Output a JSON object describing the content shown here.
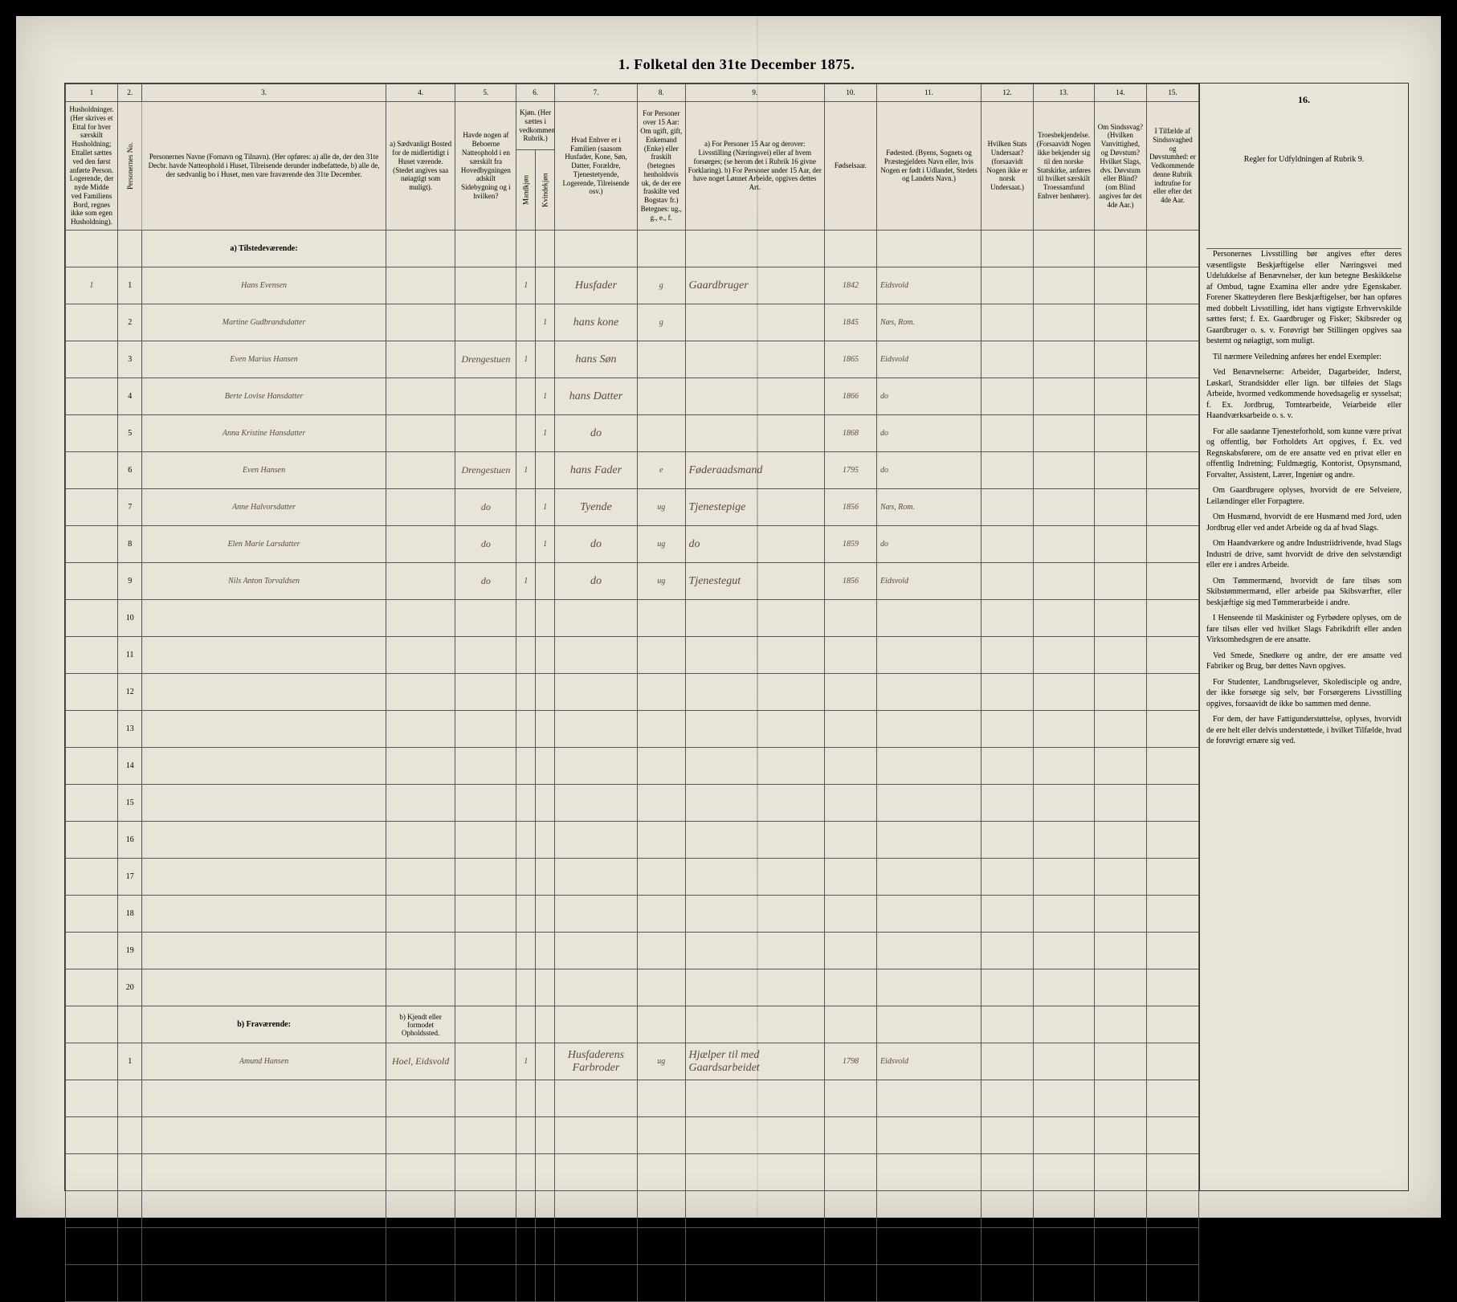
{
  "title": "1. Folketal den 31te December 1875.",
  "column_numbers": [
    "1",
    "2.",
    "3.",
    "4.",
    "5.",
    "6.",
    "7.",
    "8.",
    "9.",
    "10.",
    "11.",
    "12.",
    "13.",
    "14.",
    "15.",
    "16."
  ],
  "headers": {
    "c1": "Husholdninger. (Her skrives et Ettal for hver særskilt Husholdning; Ettallet sættes ved den først anførte Person. Logerende, der nyde Midde ved Familiens Bord, regnes ikke som egen Husholdning).",
    "c2": "Personernes No.",
    "c3": "Personernes Navne (Fornavn og Tilnavn). (Her opføres: a) alle de, der den 31te Decbr. havde Natteophold i Huset, Tilreisende derunder indbefattede, b) alle de, der sædvanlig bo i Huset, men vare fraværende den 31te December.",
    "c4": "a) Sædvanligt Bosted for de midlertidigt i Huset værende. (Stedet angives saa nøiagtigt som muligt).",
    "c5": "Havde nogen af Beboerne Natteophold i en særskilt fra Hovedbygningen adskilt Sidebygning og i hvilken?",
    "c6": "Kjøn. (Her sættes i vedkommende Rubrik.)",
    "c6a": "Mandkjøn",
    "c6b": "Kvindekjøn",
    "c7": "Hvad Enhver er i Familien (saasom Husfader, Kone, Søn, Datter, Forældre, Tjenestetyende, Logerende, Tilreisende osv.)",
    "c8": "For Personer over 15 Aar: Om ugift, gift, Enkemand (Enke) eller fraskilt (betegnes henholdsvis uk, de der ere fraskilte ved Bogstav fr.) Betegnes: ug., g., e., f.",
    "c9": "a) For Personer 15 Aar og derover: Livsstilling (Næringsvei) eller af hvem forsørges; (se herom det i Rubrik 16 givne Forklaring). b) For Personer under 15 Aar, der have noget Lønnet Arbeide, opgives dettes Art.",
    "c10": "Fødselsaar.",
    "c11": "Fødested. (Byens, Sognets og Præstegjeldets Navn eller, hvis Nogen er født i Udlandet, Stedets og Landets Navn.)",
    "c12": "Hvilken Stats Undersaat? (forsaavidt Nogen ikke er norsk Undersaat.)",
    "c13": "Troesbekjendelse. (Forsaavidt Nogen ikke bekjender sig til den norske Statskirke, anføres til hvilket særskilt Troessamfund Enhver henhører).",
    "c14": "Om Sindssvag? (Hvilken Vanvittighed, og Døvstum? Hvilket Slags, dvs. Døvstum eller Blind? (om Blind angives før det 4de Aar.)",
    "c15": "I Tilfælde af Sindssvaghed og Døvstumhed: er Vedkommende denne Rubrik indtrufne for eller efter det 4de Aar.",
    "c16": "Regler for Udfyldningen af Rubrik 9."
  },
  "section_a": "a) Tilstedeværende:",
  "section_b": "b) Fraværende:",
  "section_b_col4": "b) Kjendt eller formodet Opholdssted.",
  "rows_a": [
    {
      "hh": "1",
      "no": "1",
      "name": "Hans Evensen",
      "c4": "",
      "c5": "",
      "m": "1",
      "f": "",
      "rel": "Husfader",
      "civ": "g",
      "occ": "Gaardbruger",
      "year": "1842",
      "place": "Eidsvold"
    },
    {
      "hh": "",
      "no": "2",
      "name": "Martine Gudbrandsdatter",
      "c4": "",
      "c5": "",
      "m": "",
      "f": "1",
      "rel": "hans kone",
      "civ": "g",
      "occ": "",
      "year": "1845",
      "place": "Næs, Rom."
    },
    {
      "hh": "",
      "no": "3",
      "name": "Even Marius Hansen",
      "c4": "",
      "c5": "Drengestuen",
      "m": "1",
      "f": "",
      "rel": "hans Søn",
      "civ": "",
      "occ": "",
      "year": "1865",
      "place": "Eidsvold"
    },
    {
      "hh": "",
      "no": "4",
      "name": "Berte Lovise Hansdatter",
      "c4": "",
      "c5": "",
      "m": "",
      "f": "1",
      "rel": "hans Datter",
      "civ": "",
      "occ": "",
      "year": "1866",
      "place": "do",
      "c12": "",
      "c13": "",
      "c14": "",
      "c15": ""
    },
    {
      "hh": "",
      "no": "5",
      "name": "Anna Kristine Hansdatter",
      "c4": "",
      "c5": "",
      "m": "",
      "f": "1",
      "rel": "do",
      "civ": "",
      "occ": "",
      "year": "1868",
      "place": "do"
    },
    {
      "hh": "",
      "no": "6",
      "name": "Even Hansen",
      "c4": "",
      "c5": "Drengestuen",
      "m": "1",
      "f": "",
      "rel": "hans Fader",
      "civ": "e",
      "occ": "Føderaadsmand",
      "year": "1795",
      "place": "do"
    },
    {
      "hh": "",
      "no": "7",
      "name": "Anne Halvorsdatter",
      "c4": "",
      "c5": "do",
      "m": "",
      "f": "1",
      "rel": "Tyende",
      "civ": "ug",
      "occ": "Tjenestepige",
      "year": "1856",
      "place": "Næs, Rom."
    },
    {
      "hh": "",
      "no": "8",
      "name": "Elen Marie Larsdatter",
      "c4": "",
      "c5": "do",
      "m": "",
      "f": "1",
      "rel": "do",
      "civ": "ug",
      "occ": "do",
      "year": "1859",
      "place": "do"
    },
    {
      "hh": "",
      "no": "9",
      "name": "Nils Anton Torvaldsen",
      "c4": "",
      "c5": "do",
      "m": "1",
      "f": "",
      "rel": "do",
      "civ": "ug",
      "occ": "Tjenestegut",
      "year": "1856",
      "place": "Eidsvold"
    }
  ],
  "empty_rows_a": [
    "10",
    "11",
    "12",
    "13",
    "14",
    "15",
    "16",
    "17",
    "18",
    "19",
    "20"
  ],
  "rows_b": [
    {
      "hh": "",
      "no": "1",
      "name": "Amund Hansen",
      "c4": "Hoel, Eidsvold",
      "c5": "",
      "m": "1",
      "f": "",
      "rel": "Husfaderens Farbroder",
      "civ": "ug",
      "occ": "Hjælper til med Gaardsarbeidet",
      "year": "1798",
      "place": "Eidsvold"
    }
  ],
  "empty_rows_b": 6,
  "instructions": [
    "Personernes Livsstilling bør angives efter deres væsentligste Beskjæftigelse eller Næringsvei med Udelukkelse af Benævnelser, der kun betegne Beskikkelse af Ombud, tagne Examina eller andre ydre Egenskaber. Forener Skatteyderen flere Beskjæftigelser, bør han opføres med dobbelt Livsstilling, idet hans vigtigste Erhvervskilde sættes først; f. Ex. Gaardbruger og Fisker; Skibsreder og Gaardbruger o. s. v. Forøvrigt bør Stillingen opgives saa bestemt og nøiagtigt, som muligt.",
    "Til nærmere Veiledning anføres her endel Exempler:",
    "Ved Benævnelserne: Arbeider, Dagarbeider, Inderst, Løskarl, Strandsidder eller lign. bør tilføies det Slags Arbeide, hvormed vedkommende hovedsagelig er sysselsat; f. Ex. Jordbrug, Tomtearbeide, Veiarbeide eller Haandværksarbeide o. s. v.",
    "For alle saadanne Tjenesteforhold, som kunne være privat og offentlig, bør Forholdets Art opgives, f. Ex. ved Regnskabsførere, om de ere ansatte ved en privat eller en offentlig Indretning; Fuldmægtig, Kontorist, Opsynsmand, Forvalter, Assistent, Lærer, Ingeniør og andre.",
    "Om Gaardbrugere oplyses, hvorvidt de ere Selveiere, Leilændinger eller Forpagtere.",
    "Om Husmænd, hvorvidt de ere Husmænd med Jord, uden Jordbrug eller ved andet Arbeide og da af hvad Slags.",
    "Om Haandværkere og andre Industriidrivende, hvad Slags Industri de drive, samt hvorvidt de drive den selvstændigt eller ere i andres Arbeide.",
    "Om Tømmermænd, hvorvidt de fare tilsøs som Skibstømmermænd, eller arbeide paa Skibsværfter, eller beskjæftige sig med Tømmerarbeide i andre.",
    "I Henseende til Maskinister og Fyrbødere oplyses, om de fare tilsøs eller ved hvilket Slags Fabrikdrift eller anden Virksomhedsgren de ere ansatte.",
    "Ved Smede, Snedkere og andre, der ere ansatte ved Fabriker og Brug, bør dettes Navn opgives.",
    "For Studenter, Landbrugselever, Skoledisciple og andre, der ikke forsørge sig selv, bør Forsørgerens Livsstilling opgives, forsaavidt de ikke bo sammen med denne.",
    "For dem, der have Fattigunderstøttelse, oplyses, hvorvidt de ere helt eller delvis understøttede, i hvilket Tilfælde, hvad de forøvrigt ernære sig ved."
  ]
}
